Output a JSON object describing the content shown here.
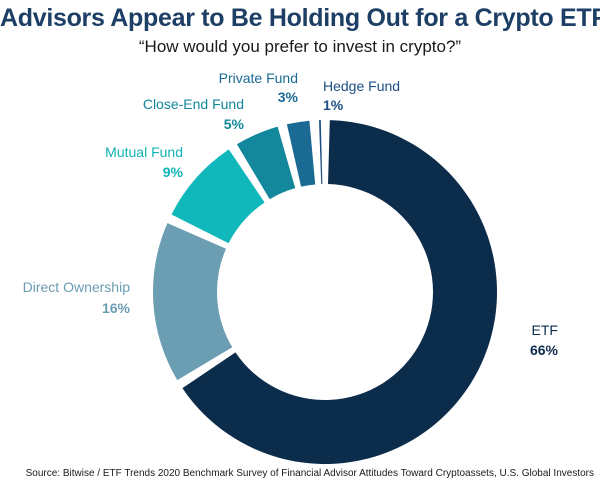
{
  "chart_data": {
    "type": "donut",
    "title": "Advisors Appear to Be Holding Out for a Crypto ETF",
    "subtitle": "“How would you prefer to invest in crypto?”",
    "categories": [
      "ETF",
      "Direct Ownership",
      "Mutual Fund",
      "Close-End Fund",
      "Private Fund",
      "Hedge Fund"
    ],
    "values": [
      66,
      16,
      9,
      5,
      3,
      1
    ],
    "value_labels": [
      "66%",
      "16%",
      "9%",
      "5%",
      "3%",
      "1%"
    ],
    "colors": [
      "#0c2c4c",
      "#6b9db3",
      "#10b8bc",
      "#13879b",
      "#1a6a93",
      "#1c4f83"
    ],
    "label_colors": [
      "#0c2c4c",
      "#6b9db3",
      "#10b3b6",
      "#13879b",
      "#1a6a93",
      "#1c4f83"
    ]
  },
  "source": "Source: Bitwise / ETF Trends 2020 Benchmark Survey of Financial Advisor Attitudes Toward Cryptoassets, U.S. Global Investors"
}
